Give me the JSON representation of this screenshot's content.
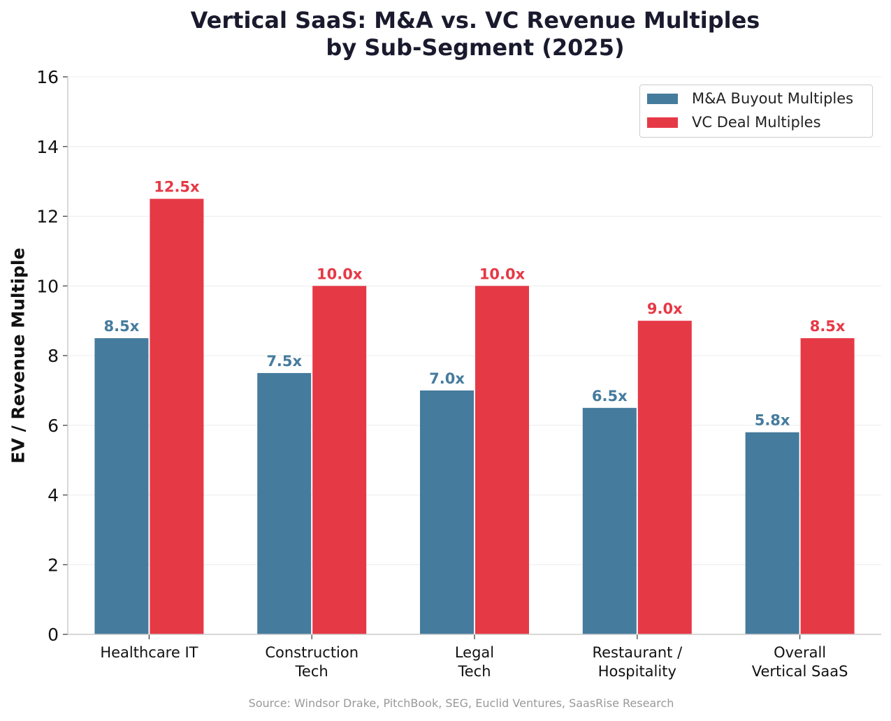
{
  "chart_data": {
    "type": "bar",
    "title_lines": [
      "Vertical SaaS: M&A vs. VC Revenue Multiples",
      "by Sub-Segment (2025)"
    ],
    "xlabel": "",
    "ylabel": "EV / Revenue Multiple",
    "ylim": [
      0,
      16
    ],
    "yticks": [
      0,
      2,
      4,
      6,
      8,
      10,
      12,
      14,
      16
    ],
    "categories": [
      [
        "Healthcare IT"
      ],
      [
        "Construction",
        "Tech"
      ],
      [
        "Legal",
        "Tech"
      ],
      [
        "Restaurant /",
        "Hospitality"
      ],
      [
        "Overall",
        "Vertical SaaS"
      ]
    ],
    "series": [
      {
        "name": "M&A Buyout Multiples",
        "color": "#457b9d",
        "values": [
          8.5,
          7.5,
          7.0,
          6.5,
          5.8
        ],
        "labels": [
          "8.5x",
          "7.5x",
          "7.0x",
          "6.5x",
          "5.8x"
        ]
      },
      {
        "name": "VC Deal Multiples",
        "color": "#e63946",
        "values": [
          12.5,
          10.0,
          10.0,
          9.0,
          8.5
        ],
        "labels": [
          "12.5x",
          "10.0x",
          "10.0x",
          "9.0x",
          "8.5x"
        ]
      }
    ],
    "grid": true,
    "legend_position": "top-right",
    "source": "Source: Windsor Drake, PitchBook, SEG, Euclid Ventures, SaasRise Research"
  }
}
